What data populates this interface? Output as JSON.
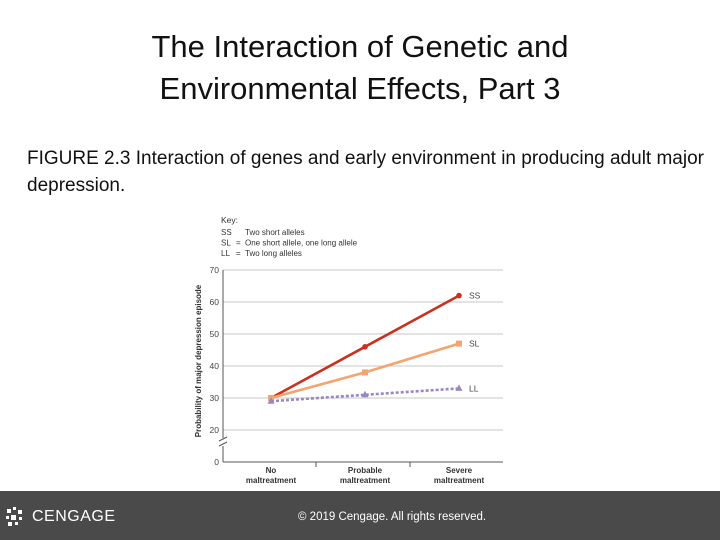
{
  "slide": {
    "title_line1": "The Interaction of Genetic and",
    "title_line2": "Environmental Effects, Part 3",
    "caption": "FIGURE 2.3  Interaction of genes and early environment in producing adult major depression."
  },
  "footer": {
    "brand": "CENGAGE",
    "copyright": "© 2019 Cengage. All rights reserved."
  },
  "chart_data": {
    "type": "line",
    "ylabel": "Probability of major depression episode",
    "xlabel": "",
    "categories": [
      "No maltreatment",
      "Probable maltreatment",
      "Severe maltreatment"
    ],
    "category_lines": [
      [
        "No",
        "maltreatment"
      ],
      [
        "Probable",
        "maltreatment"
      ],
      [
        "Severe",
        "maltreatment"
      ]
    ],
    "yticks": [
      0,
      20,
      30,
      40,
      50,
      60,
      70
    ],
    "ylim": [
      20,
      70
    ],
    "axis_break": true,
    "grid": true,
    "key_title": "Key:",
    "key_items": [
      {
        "code": "SS",
        "sep": "",
        "desc": "Two short alleles"
      },
      {
        "code": "SL",
        "sep": "=",
        "desc": "One short allele, one long allele"
      },
      {
        "code": "LL",
        "sep": "=",
        "desc": "Two long alleles"
      }
    ],
    "series": [
      {
        "name": "SS",
        "values": [
          30,
          46,
          62
        ],
        "color": "#c8321e",
        "dashed": false,
        "marker": "circle"
      },
      {
        "name": "SL",
        "values": [
          30,
          38,
          47
        ],
        "color": "#f3a46f",
        "dashed": false,
        "marker": "square"
      },
      {
        "name": "LL",
        "values": [
          29,
          31,
          33
        ],
        "color": "#9a87c4",
        "dashed": true,
        "marker": "triangle"
      }
    ]
  }
}
